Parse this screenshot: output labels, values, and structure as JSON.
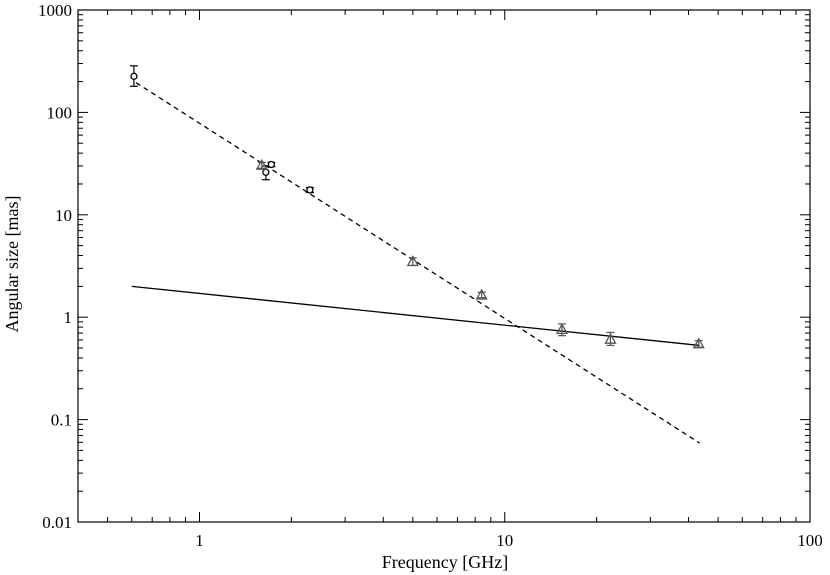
{
  "chart_data": {
    "type": "scatter",
    "title": "",
    "xlabel": "Frequency [GHz]",
    "ylabel": "Angular size [mas]",
    "xscale": "log",
    "yscale": "log",
    "xlim": [
      0.4,
      100
    ],
    "ylim": [
      0.01,
      1000
    ],
    "grid": false,
    "legend": "none",
    "x_ticks": [
      {
        "value": 1,
        "label": "1"
      },
      {
        "value": 10,
        "label": "10"
      },
      {
        "value": 100,
        "label": "100"
      }
    ],
    "y_ticks": [
      {
        "value": 0.01,
        "label": "0.01"
      },
      {
        "value": 0.1,
        "label": "0.1"
      },
      {
        "value": 1,
        "label": "1"
      },
      {
        "value": 10,
        "label": "10"
      },
      {
        "value": 100,
        "label": "100"
      },
      {
        "value": 1000,
        "label": "1000"
      }
    ],
    "series": [
      {
        "marker": "circle",
        "color": "#000000",
        "points": [
          {
            "x": 0.61,
            "y": 225,
            "err_low": 45,
            "err_high": 60
          },
          {
            "x": 1.65,
            "y": 26,
            "err_low": 4,
            "err_high": 4
          },
          {
            "x": 1.72,
            "y": 31,
            "err_low": 1.5,
            "err_high": 1.5
          },
          {
            "x": 2.3,
            "y": 17.5,
            "err_low": 1,
            "err_high": 1
          }
        ]
      },
      {
        "marker": "triangle",
        "color": "#555555",
        "points": [
          {
            "x": 1.6,
            "y": 30.5,
            "err_low": 2,
            "err_high": 2
          },
          {
            "x": 5.0,
            "y": 3.5,
            "err_low": 0.3,
            "err_high": 0.3
          },
          {
            "x": 8.4,
            "y": 1.65,
            "err_low": 0.1,
            "err_high": 0.1
          },
          {
            "x": 15.4,
            "y": 0.76,
            "err_low": 0.1,
            "err_high": 0.1
          },
          {
            "x": 22.2,
            "y": 0.61,
            "err_low": 0.08,
            "err_high": 0.1
          },
          {
            "x": 43.2,
            "y": 0.55,
            "err_low": 0.04,
            "err_high": 0.04
          }
        ]
      }
    ],
    "fits": [
      {
        "style": "dashed",
        "x": [
          0.62,
          43.5
        ],
        "y": [
          195,
          0.059
        ]
      },
      {
        "style": "solid",
        "x": [
          0.6,
          43.5
        ],
        "y": [
          2.0,
          0.53
        ]
      }
    ]
  }
}
